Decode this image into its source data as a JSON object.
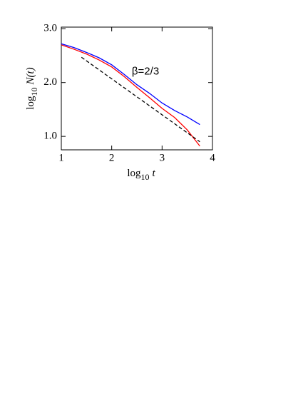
{
  "chart_data": {
    "type": "line",
    "xlabel": [
      "log",
      "10",
      "t"
    ],
    "ylabel": [
      "log",
      "10",
      "N(t)"
    ],
    "annotation": {
      "text": "β=2/3",
      "x": 2.4,
      "y": 2.2
    },
    "xlim": [
      1,
      4
    ],
    "xticks": [
      1,
      2,
      3,
      4
    ],
    "ylim": [
      0.75,
      3.03
    ],
    "yticks": [
      {
        "value": 1,
        "label": "1.0"
      },
      {
        "value": 2,
        "label": "2.0"
      },
      {
        "value": 3,
        "label": "3.0"
      }
    ],
    "series": [
      {
        "color": "#0000ff",
        "x": [
          1,
          1.25,
          1.5,
          1.75,
          2,
          2.25,
          2.5,
          2.75,
          3,
          3.25,
          3.5,
          3.75
        ],
        "values": [
          2.72,
          2.65,
          2.56,
          2.46,
          2.33,
          2.15,
          1.96,
          1.8,
          1.62,
          1.48,
          1.36,
          1.22
        ]
      },
      {
        "color": "#ff0000",
        "x": [
          1,
          1.25,
          1.5,
          1.75,
          2,
          2.25,
          2.5,
          2.75,
          3,
          3.25,
          3.5,
          3.75
        ],
        "values": [
          2.7,
          2.62,
          2.53,
          2.42,
          2.29,
          2.11,
          1.91,
          1.72,
          1.52,
          1.35,
          1.12,
          0.82
        ]
      },
      {
        "color": "#000000",
        "dashed": true,
        "x": [
          1.4,
          3.75
        ],
        "values": [
          2.47,
          0.9
        ]
      }
    ]
  }
}
